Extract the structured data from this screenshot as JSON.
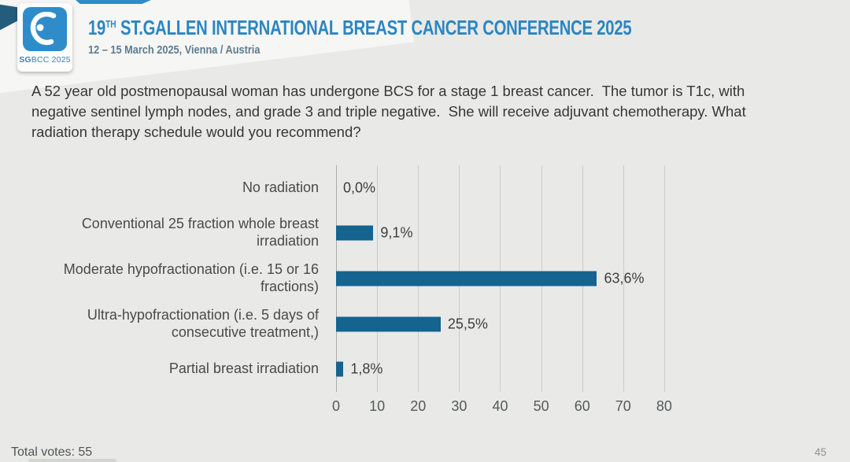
{
  "header": {
    "logo": {
      "bold": "SG",
      "rest": "BCC 2025"
    },
    "title_num": "19",
    "title_sup": "TH",
    "title_rest": " ST.GALLEN INTERNATIONAL BREAST CANCER CONFERENCE 2025",
    "subtitle": "12 – 15 March 2025, Vienna / Austria"
  },
  "question": {
    "text": "A 52 year old postmenopausal woman has undergone BCS for a stage 1 breast cancer.  The tumor is T1c, with negative sentinel lymph nodes, and grade 3 and triple negative.  She will receive adjuvant chemotherapy. What radiation therapy schedule would you recommend?"
  },
  "chart_data": {
    "type": "bar",
    "orientation": "horizontal",
    "title": "",
    "xlabel": "",
    "ylabel": "",
    "categories": [
      "No radiation",
      "Conventional 25 fraction whole breast irradiation",
      "Moderate hypofractionation (i.e. 15 or 16 fractions)",
      "Ultra-hypofractionation (i.e. 5 days of consecutive treatment,)",
      "Partial breast irradiation"
    ],
    "values": [
      0.0,
      9.1,
      63.6,
      25.5,
      1.8
    ],
    "value_labels": [
      "0,0%",
      "9,1%",
      "63,6%",
      "25,5%",
      "1,8%"
    ],
    "x_ticks": [
      0,
      10,
      20,
      30,
      40,
      50,
      60,
      70,
      80
    ],
    "xlim": [
      0,
      85
    ],
    "bar_color": "#15638F",
    "grid": true,
    "legend": false
  },
  "footer": {
    "total_votes": "Total votes: 55",
    "page_number": "45"
  },
  "colors": {
    "accent_blue": "#2B86C2",
    "slide_bg": "#E9E9E7",
    "grid_line": "#CBCDCC"
  }
}
